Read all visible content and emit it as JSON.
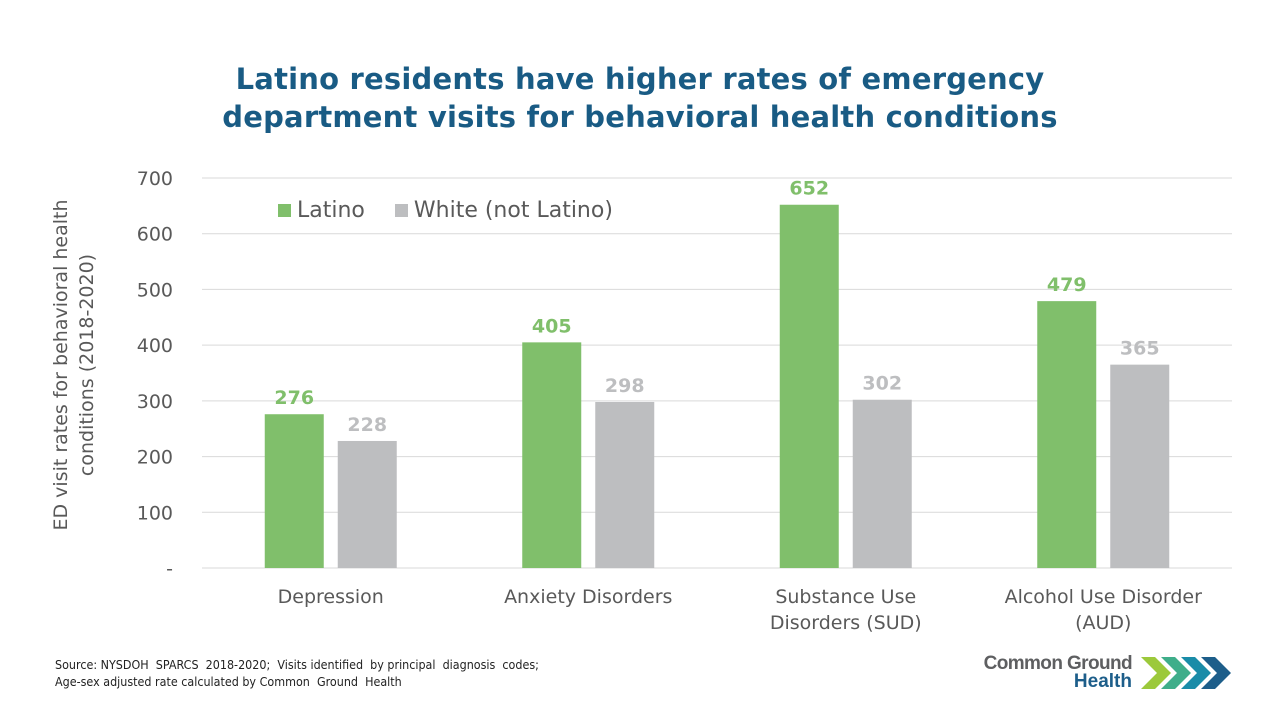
{
  "title_lines": [
    "Latino residents have higher rates of emergency",
    "department visits for behavioral health conditions"
  ],
  "chart_data": {
    "type": "bar",
    "title": "Latino residents have higher rates of emergency department visits for behavioral health conditions",
    "categories": [
      [
        "Depression"
      ],
      [
        "Anxiety Disorders"
      ],
      [
        "Substance Use",
        "Disorders (SUD)"
      ],
      [
        "Alcohol Use Disorder",
        "(AUD)"
      ]
    ],
    "series": [
      {
        "name": "Latino",
        "color": "#80bf6b",
        "label_color": "#80bf6b",
        "values": [
          276,
          405,
          652,
          479
        ]
      },
      {
        "name": "White (not Latino)",
        "color": "#bdbec0",
        "label_color": "#bdbec0",
        "values": [
          228,
          298,
          302,
          365
        ]
      }
    ],
    "xlabel": "",
    "ylabel_lines": [
      "ED visit rates for behavioral health",
      "conditions (2018-2020)"
    ],
    "ylim": [
      0,
      700
    ],
    "yticks": [
      0,
      100,
      200,
      300,
      400,
      500,
      600,
      700
    ],
    "ytick_labels": [
      "-",
      "100",
      "200",
      "300",
      "400",
      "500",
      "600",
      "700"
    ],
    "grid": true,
    "legend_position": "top-left",
    "data_labels": true
  },
  "source_lines": [
    "Source: NYSDOH  SPARCS  2018-2020;  Visits identified  by principal  diagnosis  codes;",
    "Age-sex adjusted rate calculated by Common  Ground  Health"
  ],
  "logo": {
    "line1": "Common Ground",
    "line2": "Health",
    "arrow_colors": [
      "#9cc93b",
      "#3fae8a",
      "#1a8ca8",
      "#1d5e8a"
    ]
  }
}
